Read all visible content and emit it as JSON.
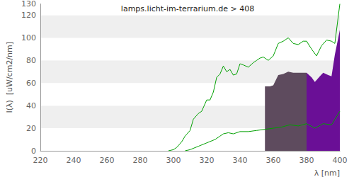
{
  "chart_data": {
    "type": "line",
    "title": "lamps.licht-im-terrarium.de > 408",
    "x_label": "λ [nm]",
    "y_label": "I(λ)  [uW/cm2/nm]",
    "xlim": [
      220,
      400
    ],
    "xticks": [
      220,
      240,
      260,
      280,
      300,
      320,
      340,
      360,
      380,
      400
    ],
    "ylim": [
      0,
      130
    ],
    "yticks": [
      0,
      20,
      40,
      60,
      80,
      100,
      120
    ],
    "grid": true,
    "series": [
      {
        "type": "line",
        "color": "#00a000",
        "x": [
          297,
          300,
          302,
          305,
          307,
          310,
          312,
          315,
          317,
          320,
          322,
          324,
          326,
          328,
          330,
          332,
          334,
          336,
          338,
          340,
          342,
          345,
          348,
          350,
          352,
          354,
          357,
          360,
          363,
          366,
          369,
          372,
          375,
          378,
          380,
          383,
          386,
          389,
          392,
          395,
          397,
          400
        ],
        "values": [
          0,
          1,
          3,
          8,
          13,
          18,
          28,
          33,
          35,
          45,
          45,
          52,
          65,
          68,
          75,
          70,
          72,
          67,
          68,
          77,
          76,
          74,
          78,
          80,
          82,
          83,
          80,
          84,
          95,
          97,
          100,
          95,
          94,
          97,
          97,
          90,
          84,
          93,
          98,
          97,
          95,
          130
        ]
      },
      {
        "type": "line",
        "color": "#00a000",
        "x": [
          307,
          310,
          315,
          320,
          325,
          328,
          330,
          333,
          336,
          340,
          345,
          350,
          355,
          360,
          365,
          370,
          375,
          380,
          385,
          390,
          395,
          400
        ],
        "values": [
          0,
          1,
          4,
          7,
          10,
          13,
          15,
          16,
          15,
          17,
          17,
          18,
          19,
          20,
          21,
          23,
          22,
          24,
          20,
          24,
          23,
          35
        ]
      },
      {
        "type": "area",
        "color": "#5e4b5e",
        "x": [
          355,
          358,
          360,
          363,
          366,
          369,
          372,
          375,
          378,
          380
        ],
        "values": [
          57,
          57,
          58,
          67,
          68,
          70,
          69,
          69,
          69,
          69
        ]
      },
      {
        "type": "area",
        "color": "#6a0f96",
        "x": [
          380,
          383,
          385,
          388,
          390,
          393,
          395,
          397,
          400
        ],
        "values": [
          69,
          65,
          61,
          66,
          69,
          67,
          66,
          85,
          107
        ]
      }
    ]
  }
}
